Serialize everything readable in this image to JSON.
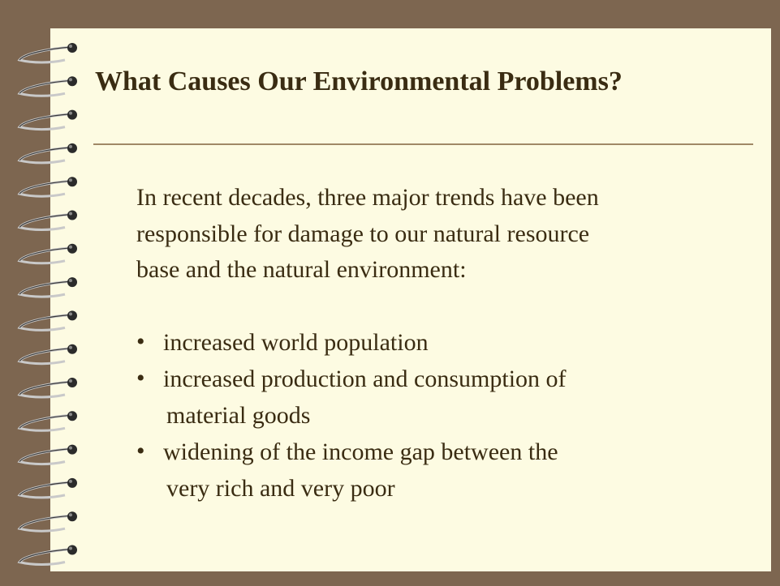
{
  "slide": {
    "title": "What Causes Our Environmental Problems?",
    "intro_lines": [
      "In recent decades, three major trends have been",
      "responsible for damage to our natural resource",
      "base and the natural environment:"
    ],
    "bullets": [
      {
        "lines": [
          "increased world population"
        ]
      },
      {
        "lines": [
          "increased production and consumption of",
          "material goods"
        ]
      },
      {
        "lines": [
          "widening of the income gap between the",
          "very rich and very poor"
        ]
      }
    ]
  }
}
